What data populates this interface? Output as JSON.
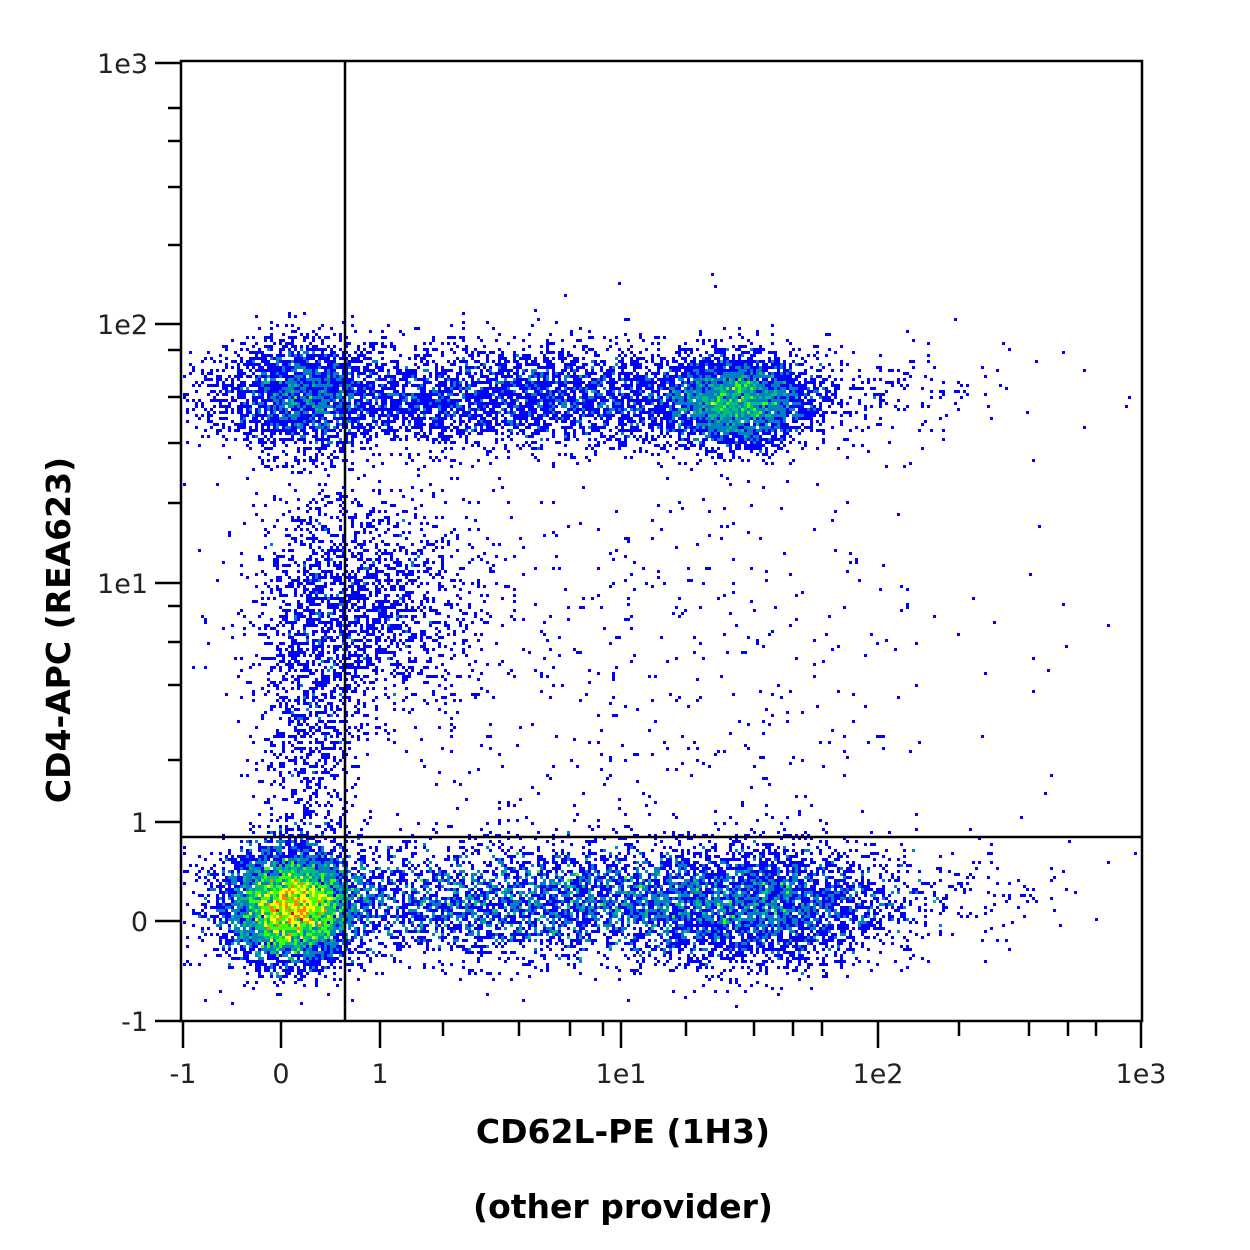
{
  "chart_data": {
    "type": "scatter",
    "subtype": "flow-cytometry-density-dot-plot",
    "title": "",
    "xlabel": "CD62L-PE (1H3)",
    "xlabel_sub": "(other provider)",
    "ylabel": "CD4-APC (REA623)",
    "x_scale": "biexponential/log",
    "y_scale": "biexponential/log",
    "xlim": [
      -1,
      1000
    ],
    "ylim": [
      -1,
      1000
    ],
    "x_ticks": [
      "-1",
      "0",
      "1",
      "1e1",
      "1e2",
      "1e3"
    ],
    "y_ticks": [
      "-1",
      "0",
      "1",
      "1e1",
      "1e2",
      "1e3"
    ],
    "grid": false,
    "legend": null,
    "color_scale": [
      "#0000ff",
      "#0080c0",
      "#00c080",
      "#40ff00",
      "#ffff00",
      "#ff8000",
      "#ff0000"
    ],
    "gates": {
      "vertical_x": 0.65,
      "horizontal_y": 0.85
    },
    "populations": [
      {
        "name": "CD4- CD62L- (double negative)",
        "x_center": 0.1,
        "y_center": 0.1,
        "density": "highest",
        "color_peak": "red"
      },
      {
        "name": "CD4- CD62L+ band",
        "x_range": [
          0.7,
          60
        ],
        "y_center": 0.1,
        "density": "medium"
      },
      {
        "name": "CD4+ CD62L+ (bright)",
        "x_center": 30,
        "y_center": 48,
        "density": "high",
        "color_peak": "green"
      },
      {
        "name": "CD4+ CD62L- ",
        "x_center": 0.2,
        "y_center": 55,
        "density": "medium"
      },
      {
        "name": "CD4+ band",
        "x_range": [
          0.3,
          60
        ],
        "y_center": 50,
        "density": "medium"
      },
      {
        "name": "CD4 dim",
        "x_center": 1,
        "y_center": 8,
        "density": "low"
      }
    ]
  }
}
